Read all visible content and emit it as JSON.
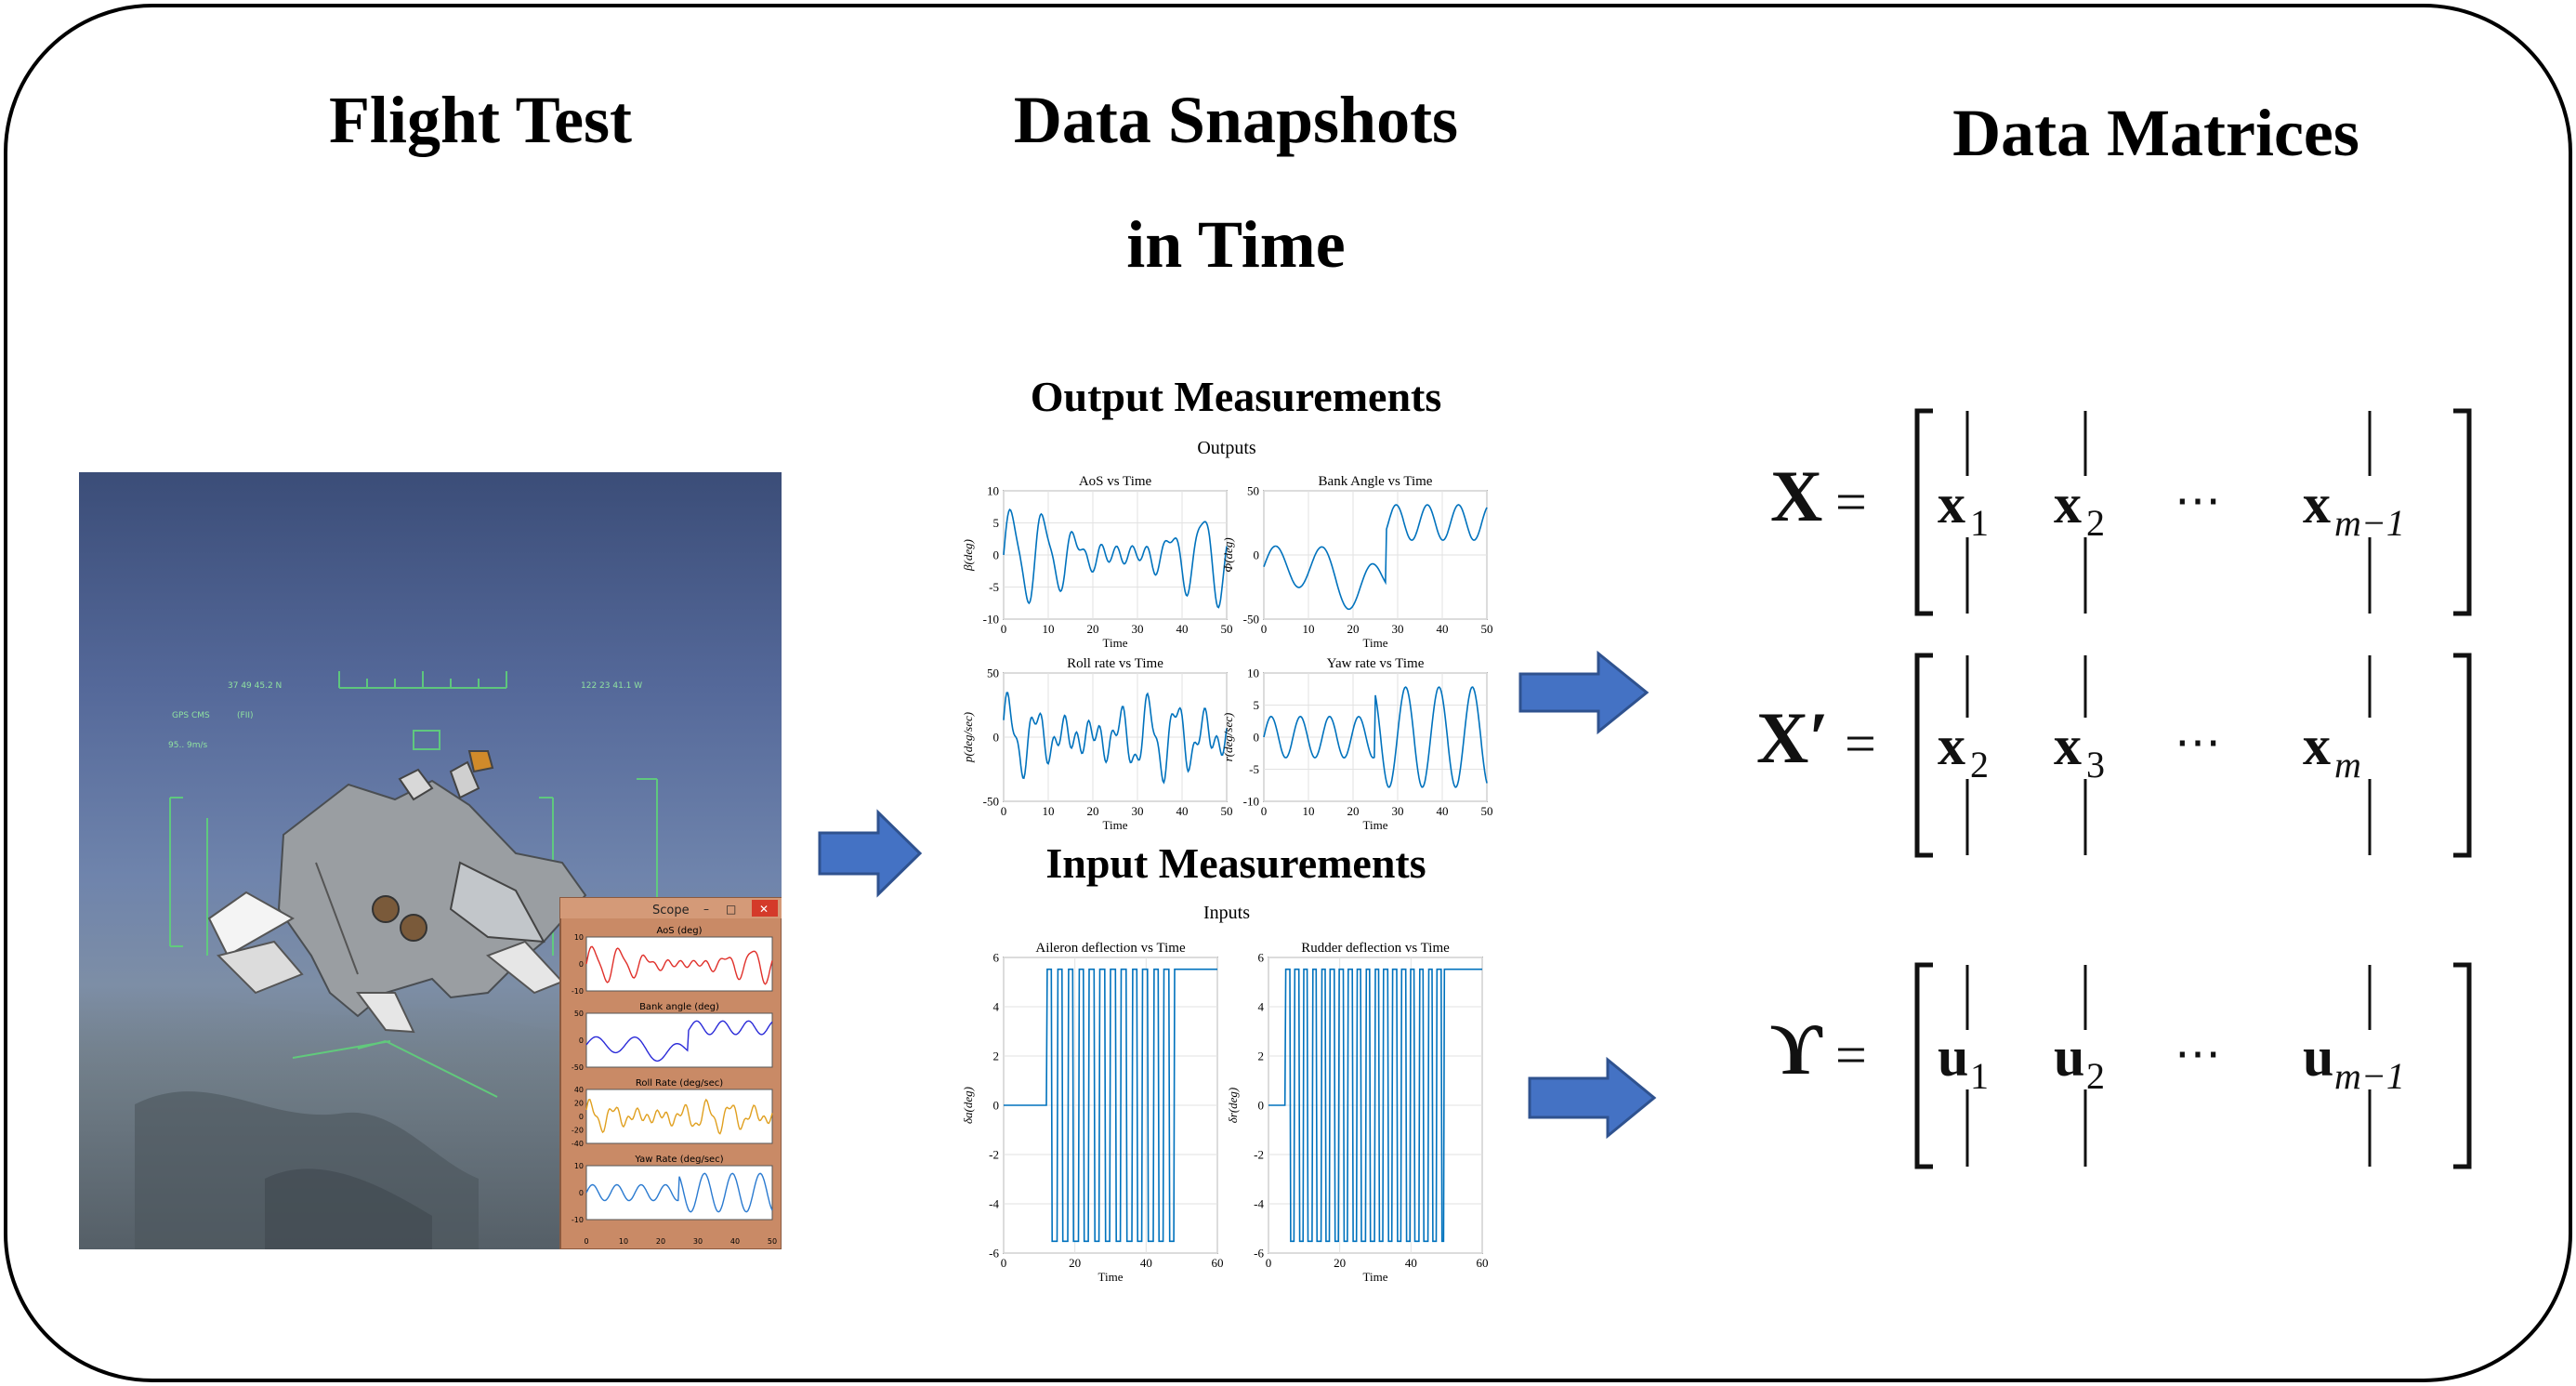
{
  "headings": {
    "flight_test": "Flight Test",
    "data_snapshots_line1": "Data Snapshots",
    "data_snapshots_line2": "in Time",
    "data_matrices": "Data Matrices"
  },
  "output_section": {
    "title": "Output Measurements",
    "figure_title": "Outputs",
    "plots": [
      {
        "title": "AoS vs Time",
        "ylabel": "β(deg)",
        "xlabel": "Time",
        "yticks": [
          "10",
          "5",
          "0",
          "-5",
          "-10"
        ],
        "xticks": [
          "0",
          "10",
          "20",
          "30",
          "40",
          "50"
        ]
      },
      {
        "title": "Bank Angle vs Time",
        "ylabel": "Φ(deg)",
        "xlabel": "Time",
        "yticks": [
          "50",
          "0",
          "-50"
        ],
        "xticks": [
          "0",
          "10",
          "20",
          "30",
          "40",
          "50"
        ]
      },
      {
        "title": "Roll rate vs Time",
        "ylabel": "p(deg/sec)",
        "xlabel": "Time",
        "yticks": [
          "50",
          "0",
          "-50"
        ],
        "xticks": [
          "0",
          "10",
          "20",
          "30",
          "40",
          "50"
        ]
      },
      {
        "title": "Yaw rate vs Time",
        "ylabel": "r(deg/sec)",
        "xlabel": "Time",
        "yticks": [
          "10",
          "5",
          "0",
          "-5",
          "-10"
        ],
        "xticks": [
          "0",
          "10",
          "20",
          "30",
          "40",
          "50"
        ]
      }
    ]
  },
  "input_section": {
    "title": "Input Measurements",
    "figure_title": "Inputs",
    "plots": [
      {
        "title": "Aileron deflection vs Time",
        "ylabel": "δa(deg)",
        "xlabel": "Time",
        "yticks": [
          "6",
          "4",
          "2",
          "0",
          "-2",
          "-4",
          "-6"
        ],
        "xticks": [
          "0",
          "20",
          "40",
          "60"
        ]
      },
      {
        "title": "Rudder deflection vs Time",
        "ylabel": "δr(deg)",
        "xlabel": "Time",
        "yticks": [
          "6",
          "4",
          "2",
          "0",
          "-2",
          "-4",
          "-6"
        ],
        "xticks": [
          "0",
          "20",
          "40",
          "60"
        ]
      }
    ]
  },
  "scope_window": {
    "title": "Scope",
    "panels": [
      {
        "title": "AoS (deg)",
        "color": "#e0302a",
        "yticks": [
          "10",
          "0",
          "-10"
        ]
      },
      {
        "title": "Bank angle (deg)",
        "color": "#2a2ad8",
        "yticks": [
          "50",
          "0",
          "-50"
        ]
      },
      {
        "title": "Roll Rate (deg/sec)",
        "color": "#e0a020",
        "yticks": [
          "40",
          "20",
          "0",
          "-20",
          "-40"
        ]
      },
      {
        "title": "Yaw Rate (deg/sec)",
        "color": "#2a7ad0",
        "yticks": [
          "10",
          "0",
          "-10"
        ]
      }
    ],
    "xticks": [
      "0",
      "10",
      "20",
      "30",
      "40",
      "50"
    ]
  },
  "matrices": {
    "X": {
      "lhs": "X",
      "entries": [
        "x",
        "x",
        "⋯",
        "x"
      ],
      "subs": [
        "1",
        "2",
        "",
        "m−1"
      ]
    },
    "Xprime": {
      "lhs": "X′",
      "entries": [
        "x",
        "x",
        "⋯",
        "x"
      ],
      "subs": [
        "2",
        "3",
        "",
        "m"
      ]
    },
    "Upsilon": {
      "lhs": "ϒ",
      "entries": [
        "u",
        "u",
        "⋯",
        "u"
      ],
      "subs": [
        "1",
        "2",
        "",
        "m−1"
      ]
    },
    "equals": "="
  },
  "colors": {
    "arrow": "#4472c4",
    "arrow_border": "#2f528f",
    "plot_line": "#0072bd"
  }
}
